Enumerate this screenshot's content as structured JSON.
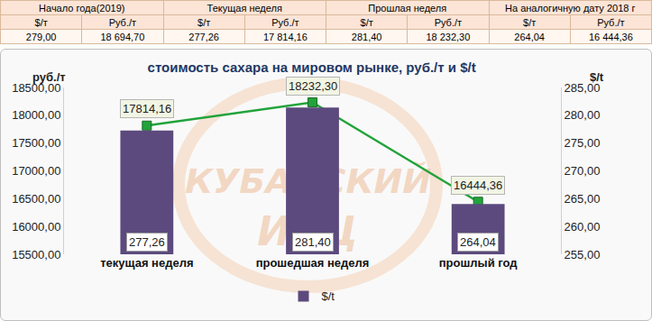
{
  "table": {
    "groups": [
      "Начало года(2019)",
      "Текущая неделя",
      "Прошлая неделя",
      "На аналогичную дату 2018 г"
    ],
    "subheaders": [
      "$/т",
      "Руб./т",
      "$/т",
      "Руб./т",
      "$/т",
      "Руб./т",
      "$/т",
      "Руб./т"
    ],
    "values": [
      "279,00",
      "18 694,70",
      "277,26",
      "17 814,16",
      "281,40",
      "18 232,30",
      "264,04",
      "16 444,36"
    ]
  },
  "watermark": [
    "КУБАНСКИЙ",
    "ИАЦ"
  ],
  "chart_data": {
    "type": "bar",
    "title": "стоимость сахара на мировом рынке, руб./т и $/t",
    "y_label": "руб./т",
    "y2_label": "$/t",
    "categories": [
      "текущая неделя",
      "прошедшая неделя",
      "прошлый год"
    ],
    "series": [
      {
        "name": "$/t",
        "type": "bar",
        "axis": "y2",
        "color": "#5c4a7e",
        "values": [
          277.26,
          281.4,
          264.04
        ],
        "value_labels": [
          "277,26",
          "281,40",
          "264,04"
        ]
      },
      {
        "type": "line",
        "axis": "y",
        "color": "#22a33a",
        "marker": "square",
        "values": [
          17814.16,
          18232.3,
          16444.36
        ],
        "value_labels": [
          "17814,16",
          "18232,30",
          "16444,36"
        ]
      }
    ],
    "ylim": [
      15500,
      18500
    ],
    "yticks": [
      {
        "value": 15500,
        "label": "15500,00"
      },
      {
        "value": 16000,
        "label": "16000,00"
      },
      {
        "value": 16500,
        "label": "16500,00"
      },
      {
        "value": 17000,
        "label": "17000,00"
      },
      {
        "value": 17500,
        "label": "17500,00"
      },
      {
        "value": 18000,
        "label": "18000,00"
      },
      {
        "value": 18500,
        "label": "18500,00"
      }
    ],
    "y2lim": [
      255,
      285
    ],
    "y2ticks": [
      {
        "value": 255,
        "label": "255,00"
      },
      {
        "value": 260,
        "label": "260,00"
      },
      {
        "value": 265,
        "label": "265,00"
      },
      {
        "value": 270,
        "label": "270,00"
      },
      {
        "value": 275,
        "label": "275,00"
      },
      {
        "value": 280,
        "label": "280,00"
      },
      {
        "value": 285,
        "label": "285,00"
      }
    ],
    "grid": false,
    "legend": "bottom",
    "data_labels": true
  }
}
